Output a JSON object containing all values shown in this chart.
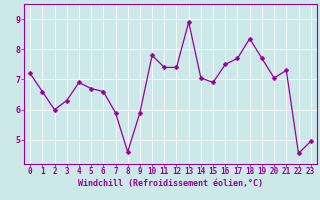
{
  "x": [
    0,
    1,
    2,
    3,
    4,
    5,
    6,
    7,
    8,
    9,
    10,
    11,
    12,
    13,
    14,
    15,
    16,
    17,
    18,
    19,
    20,
    21,
    22,
    23
  ],
  "y": [
    7.2,
    6.6,
    6.0,
    6.3,
    6.9,
    6.7,
    6.6,
    5.9,
    4.6,
    5.9,
    7.8,
    7.4,
    7.4,
    8.9,
    7.05,
    6.9,
    7.5,
    7.7,
    8.35,
    7.7,
    7.05,
    7.3,
    4.55,
    4.95
  ],
  "line_color": "#990099",
  "marker": "D",
  "marker_size": 2.5,
  "bg_color": "#cce8e8",
  "grid_color": "#ffffff",
  "xlabel": "Windchill (Refroidissement éolien,°C)",
  "label_color": "#990099",
  "tick_color": "#990099",
  "tick_fontsize": 5.5,
  "xlabel_fontsize": 6.0,
  "ylabel_ticks": [
    5,
    6,
    7,
    8,
    9
  ],
  "ylim": [
    4.2,
    9.5
  ],
  "xlim": [
    -0.5,
    23.5
  ],
  "spine_color": "#990099",
  "axis_bg_color": "#cce8e8"
}
